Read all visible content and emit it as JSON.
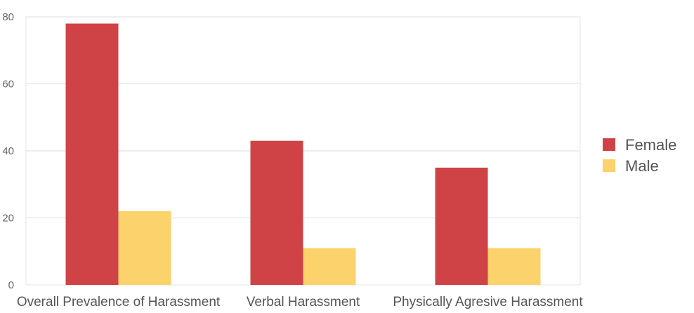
{
  "chart_data": {
    "type": "bar",
    "title": "",
    "xlabel": "",
    "ylabel": "",
    "categories": [
      "Overall Prevalence of Harassment",
      "Verbal Harassment",
      "Physically Agresive Harassment"
    ],
    "series": [
      {
        "name": "Female",
        "values": [
          78,
          43,
          35
        ],
        "color": "#cf4346"
      },
      {
        "name": "Male",
        "values": [
          22,
          11,
          11
        ],
        "color": "#fbd26b"
      }
    ],
    "ylim": [
      0,
      80
    ],
    "yticks": [
      0,
      20,
      40,
      60,
      80
    ],
    "grid": true,
    "legend_position": "right"
  }
}
